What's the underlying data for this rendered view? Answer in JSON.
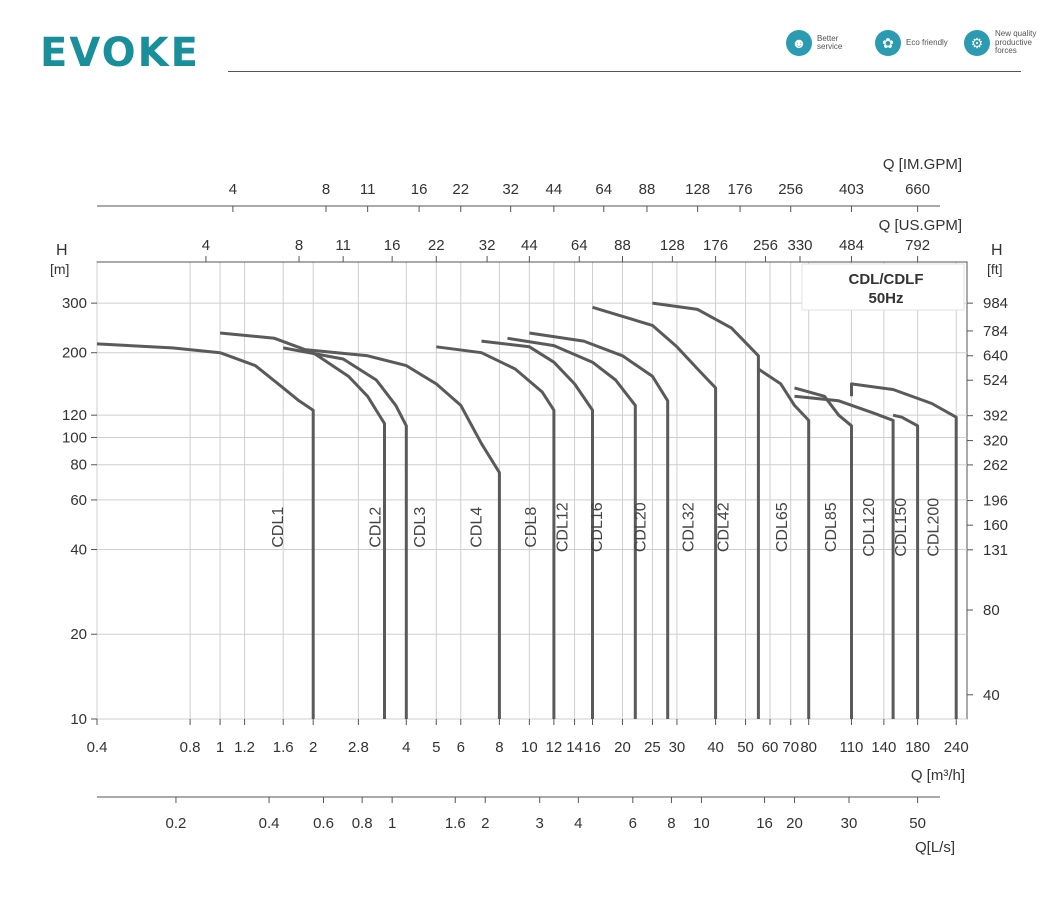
{
  "header": {
    "logo": "EVOKE",
    "badges": [
      {
        "text": "Better service",
        "icon": "headset-icon"
      },
      {
        "text": "Eco friendly",
        "icon": "leaf-globe-icon"
      },
      {
        "text": "New quality productive forces",
        "icon": "gear-icon"
      }
    ]
  },
  "chart_data": {
    "type": "line",
    "title": "CDL/CDLF",
    "subtitle": "50Hz",
    "x_scale": "log",
    "y_scale": "log",
    "xlabel": "Q [m³/h]",
    "xlim": [
      0.4,
      260
    ],
    "ylim": [
      10,
      420
    ],
    "grid": true,
    "x_ticks": [
      "0.4",
      "0.8",
      "1",
      "1.2",
      "1.6",
      "2",
      "2.8",
      "4",
      "5",
      "6",
      "8",
      "10",
      "12",
      "14",
      "16",
      "20",
      "25",
      "30",
      "40",
      "50",
      "60",
      "70",
      "80",
      "110",
      "140",
      "180",
      "240"
    ],
    "x_tick_values": [
      0.4,
      0.8,
      1,
      1.2,
      1.6,
      2,
      2.8,
      4,
      5,
      6,
      8,
      10,
      12,
      14,
      16,
      20,
      25,
      30,
      40,
      50,
      60,
      70,
      80,
      110,
      140,
      180,
      240
    ],
    "x_grid": [
      0.4,
      0.8,
      1,
      1.2,
      1.6,
      2,
      2.8,
      4,
      5,
      6,
      8,
      10,
      12,
      14,
      16,
      20,
      25,
      30,
      40,
      50,
      60,
      70,
      80,
      110,
      140,
      180,
      240
    ],
    "y_left": {
      "unit_label": "H",
      "unit": "[m]",
      "ticks": [
        10,
        20,
        40,
        60,
        80,
        100,
        120,
        200,
        300
      ],
      "tick_labels": [
        "10",
        "20",
        "40",
        "60",
        "80",
        "100",
        "120",
        "200",
        "300"
      ]
    },
    "y_right": {
      "unit_label": "H",
      "unit": "[ft]",
      "ticks": [
        "40",
        "80",
        "131",
        "160",
        "196",
        "262",
        "320",
        "392",
        "524",
        "640",
        "784",
        "984"
      ],
      "positions_m": [
        12.19,
        24.38,
        39.9,
        48.8,
        59.7,
        79.9,
        97.5,
        119.5,
        159.7,
        195.1,
        239,
        300
      ]
    },
    "top_axis_usgpm": {
      "label": "Q [US.GPM]",
      "ticks": [
        "4",
        "8",
        "11",
        "16",
        "22",
        "32",
        "44",
        "64",
        "88",
        "128",
        "176",
        "256",
        "330",
        "484",
        "792"
      ],
      "positions_m3h": [
        0.9,
        1.8,
        2.5,
        3.6,
        5,
        7.3,
        10,
        14.5,
        20,
        29,
        40,
        58,
        75,
        110,
        180
      ]
    },
    "top_axis_imgpm": {
      "label": "Q [IM.GPM]",
      "ticks": [
        "4",
        "8",
        "11",
        "16",
        "22",
        "32",
        "44",
        "64",
        "88",
        "128",
        "176",
        "256",
        "403",
        "660"
      ],
      "positions_m3h": [
        1.1,
        2.2,
        3,
        4.4,
        6,
        8.7,
        12,
        17.4,
        24,
        35,
        48,
        70,
        110,
        180
      ]
    },
    "bottom_axis_ls": {
      "label": "Q[L/s]",
      "ticks": [
        "0.2",
        "0.4",
        "0.6",
        "0.8",
        "1",
        "1.6",
        "2",
        "3",
        "4",
        "6",
        "8",
        "10",
        "16",
        "20",
        "30",
        "50"
      ],
      "tick_values": [
        0.2,
        0.4,
        0.6,
        0.8,
        1,
        1.6,
        2,
        3,
        4,
        6,
        8,
        10,
        16,
        20,
        30,
        50
      ]
    },
    "series": [
      {
        "name": "CDL1",
        "label_q": 1.6,
        "x": [
          0.4,
          0.7,
          1.0
        ],
        "y": [
          215,
          208,
          200
        ],
        "x2": [
          1.0,
          1.3,
          1.6,
          1.8,
          2.0,
          2.0
        ],
        "y2": [
          200,
          180,
          150,
          135,
          125,
          10
        ]
      },
      {
        "name": "CDL2",
        "label_q": 3.3,
        "x": [
          1.0,
          1.5,
          2.0,
          2.6,
          3.0,
          3.4,
          3.4
        ],
        "y": [
          235,
          225,
          200,
          165,
          140,
          112,
          10
        ]
      },
      {
        "name": "CDL3",
        "label_q": 4.6,
        "x": [
          1.6,
          2.5,
          3.2,
          3.7,
          4.0,
          4.0
        ],
        "y": [
          208,
          190,
          160,
          130,
          110,
          10
        ]
      },
      {
        "name": "CDL4",
        "label_q": 7.0,
        "x": [
          1.9,
          3.0,
          4.0,
          5.0,
          6.0,
          7.0,
          8.0,
          8.0
        ],
        "y": [
          205,
          195,
          180,
          155,
          130,
          95,
          75,
          10
        ]
      },
      {
        "name": "CDL8",
        "label_q": 10.5,
        "x": [
          5.0,
          7.0,
          9.0,
          11.0,
          12.0,
          12.0
        ],
        "y": [
          210,
          200,
          175,
          145,
          125,
          10
        ]
      },
      {
        "name": "CDL12",
        "label_q": 13.3,
        "x": [
          7.0,
          10.0,
          12.0,
          14.0,
          16.0,
          16.0
        ],
        "y": [
          220,
          210,
          185,
          155,
          125,
          10
        ]
      },
      {
        "name": "CDL16",
        "label_q": 17.2,
        "x": [
          8.5,
          12.0,
          16.0,
          19.0,
          22.0,
          22.0
        ],
        "y": [
          225,
          212,
          185,
          160,
          130,
          10
        ]
      },
      {
        "name": "CDL20",
        "label_q": 23.7,
        "x": [
          10.0,
          15.0,
          20.0,
          25.0,
          28.0,
          28.0
        ],
        "y": [
          235,
          220,
          195,
          165,
          135,
          10
        ]
      },
      {
        "name": "CDL32",
        "label_q": 34.0,
        "x": [
          16.0,
          25.0,
          30.0,
          35.0,
          40.0,
          40.0
        ],
        "y": [
          290,
          250,
          210,
          175,
          150,
          10
        ]
      },
      {
        "name": "CDL42",
        "label_q": 44.0,
        "x": [
          25.0,
          35.0,
          45.0,
          55.0,
          55.0
        ],
        "y": [
          300,
          285,
          245,
          195,
          10
        ]
      },
      {
        "name": "CDL65",
        "label_q": 68.0,
        "x": [
          55.0,
          65.0,
          72.0,
          80.0,
          80.0
        ],
        "y": [
          175,
          155,
          130,
          115,
          10
        ]
      },
      {
        "name": "CDL85",
        "label_q": 98.0,
        "x": [
          72.0,
          90.0,
          100.0,
          110.0,
          110.0
        ],
        "y": [
          150,
          140,
          120,
          110,
          10
        ]
      },
      {
        "name": "CDL120",
        "label_q": 130.0,
        "x": [
          72.0,
          100.0,
          130.0,
          150.0,
          150.0
        ],
        "y": [
          140,
          135,
          122,
          115,
          10
        ]
      },
      {
        "name": "CDL150",
        "label_q": 165.0,
        "x": [
          150.0,
          160.0,
          180.0,
          180.0
        ],
        "y": [
          120,
          118,
          110,
          10
        ]
      },
      {
        "name": "CDL200",
        "label_q": 210.0,
        "x": [
          110.0,
          110.0,
          150.0,
          200.0,
          240.0,
          240.0
        ],
        "y": [
          140,
          155,
          148,
          132,
          118,
          10
        ]
      }
    ]
  }
}
